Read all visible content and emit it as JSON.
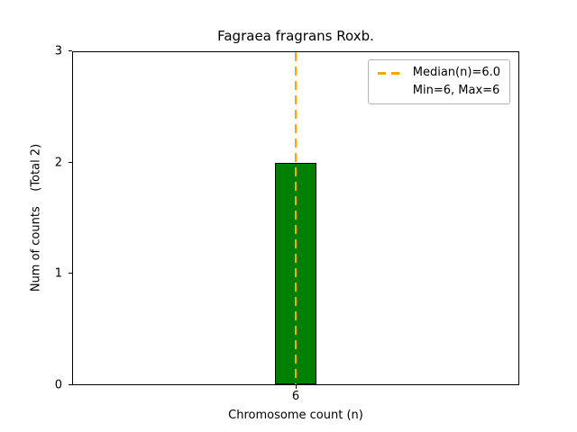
{
  "chart_data": {
    "type": "bar",
    "title": "Fagraea fragrans Roxb.",
    "xlabel": "Chromosome count (n)",
    "ylabel": "Num of counts    (Total 2)",
    "categories": [
      "6"
    ],
    "values": [
      2
    ],
    "ylim": [
      0,
      3
    ],
    "yticks": [
      0,
      1,
      2,
      3
    ],
    "grid": "off",
    "bar_color": "#008000",
    "bar_edge_color": "#000000",
    "median_line": {
      "x": 6,
      "color": "#ffa500",
      "style": "dashed"
    },
    "legend": {
      "position": "upper right",
      "entries": [
        {
          "label": "Median(n)=6.0",
          "symbol": "dashed-line",
          "color": "#ffa500"
        },
        {
          "label": "Min=6, Max=6",
          "symbol": "none"
        }
      ]
    }
  }
}
